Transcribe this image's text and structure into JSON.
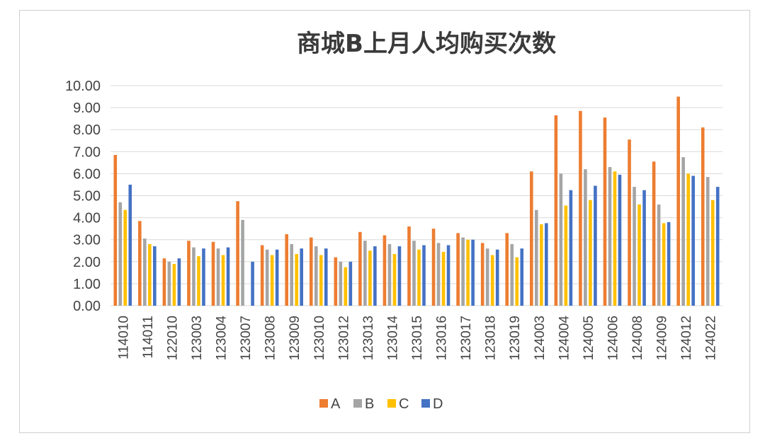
{
  "chart_data": {
    "type": "bar",
    "title": "商城B上月人均购买次数",
    "xlabel": "",
    "ylabel": "",
    "ylim": [
      0,
      10
    ],
    "yticks": [
      "0.00",
      "1.00",
      "2.00",
      "3.00",
      "4.00",
      "5.00",
      "6.00",
      "7.00",
      "8.00",
      "9.00",
      "10.00"
    ],
    "grid": true,
    "legend_position": "bottom",
    "categories": [
      "114010",
      "114011",
      "122010",
      "123003",
      "123004",
      "123007",
      "123008",
      "123009",
      "123010",
      "123012",
      "123013",
      "123014",
      "123015",
      "123016",
      "123017",
      "123018",
      "123019",
      "124003",
      "124004",
      "124005",
      "124006",
      "124008",
      "124009",
      "124012",
      "124022"
    ],
    "series": [
      {
        "name": "A",
        "color": "#ED7D31",
        "values": [
          6.85,
          3.85,
          2.15,
          2.95,
          2.9,
          4.75,
          2.75,
          3.25,
          3.1,
          2.2,
          3.35,
          3.2,
          3.6,
          3.5,
          3.3,
          2.85,
          3.3,
          6.1,
          8.65,
          8.85,
          8.55,
          7.55,
          6.55,
          9.5,
          8.1
        ]
      },
      {
        "name": "B",
        "color": "#A5A5A5",
        "values": [
          4.7,
          3.05,
          2.0,
          2.65,
          2.6,
          3.9,
          2.55,
          2.8,
          2.7,
          2.0,
          2.95,
          2.8,
          2.95,
          2.85,
          3.1,
          2.6,
          2.8,
          4.35,
          6.0,
          6.2,
          6.3,
          5.4,
          4.6,
          6.75,
          5.85
        ]
      },
      {
        "name": "C",
        "color": "#FFC000",
        "values": [
          4.35,
          2.8,
          1.9,
          2.25,
          2.3,
          0,
          2.3,
          2.35,
          2.3,
          1.75,
          2.5,
          2.35,
          2.55,
          2.45,
          3.0,
          2.3,
          2.2,
          3.7,
          4.55,
          4.8,
          6.1,
          4.6,
          3.75,
          6.0,
          4.8
        ]
      },
      {
        "name": "D",
        "color": "#4472C4",
        "values": [
          5.5,
          2.7,
          2.15,
          2.6,
          2.65,
          2.0,
          2.55,
          2.6,
          2.6,
          2.0,
          2.7,
          2.7,
          2.75,
          2.75,
          3.0,
          2.55,
          2.6,
          3.75,
          5.25,
          5.45,
          5.95,
          5.25,
          3.8,
          5.9,
          5.4
        ]
      }
    ]
  }
}
